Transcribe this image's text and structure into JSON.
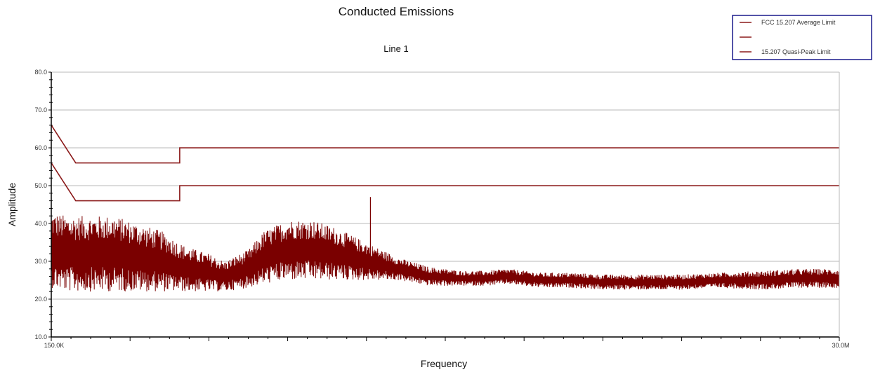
{
  "chart_data": {
    "type": "line",
    "title": "Conducted Emissions",
    "subtitle": "Line 1",
    "xlabel": "Frequency",
    "ylabel": "Amplitude",
    "ylim": [
      10,
      80
    ],
    "yticks": [
      "10.0",
      "20.0",
      "30.0",
      "40.0",
      "50.0",
      "60.0",
      "70.0",
      "80.0"
    ],
    "xlim_labels": [
      "150.0K",
      "30.0M"
    ],
    "grid": true,
    "legend_position": "top-right",
    "legend": [
      {
        "label": "FCC 15.207 Average Limit",
        "color": "#8b1a1a"
      },
      {
        "label": "",
        "color": "#8b1a1a"
      },
      {
        "label": "15.207 Quasi-Peak Limit",
        "color": "#8b1a1a"
      }
    ],
    "series": [
      {
        "name": "15.207 Quasi-Peak Limit",
        "color": "#8b1a1a",
        "x": [
          0.0,
          0.031,
          0.163,
          0.163,
          1.0
        ],
        "y": [
          66,
          56,
          56,
          60,
          60
        ]
      },
      {
        "name": "FCC 15.207 Average Limit",
        "color": "#8b1a1a",
        "x": [
          0.0,
          0.031,
          0.163,
          0.163,
          1.0
        ],
        "y": [
          56,
          46,
          46,
          50,
          50
        ]
      },
      {
        "name": "",
        "color": "#7a0000",
        "x": [
          0.0,
          0.02,
          0.05,
          0.08,
          0.11,
          0.14,
          0.17,
          0.2,
          0.22,
          0.25,
          0.27,
          0.3,
          0.33,
          0.36,
          0.4,
          0.44,
          0.48,
          0.52,
          0.55,
          0.58,
          0.62,
          0.66,
          0.7,
          0.75,
          0.8,
          0.85,
          0.9,
          0.95,
          1.0
        ],
        "y_center": [
          33,
          32,
          32,
          32,
          31,
          30,
          28,
          27,
          26,
          28,
          31,
          33,
          33,
          32,
          30,
          28,
          26,
          25.5,
          25.5,
          26,
          25,
          25,
          24.5,
          24.5,
          24.5,
          25,
          25,
          25.5,
          25.5
        ],
        "y_spread": [
          10,
          10,
          10,
          10,
          9,
          8,
          6,
          5,
          4,
          5,
          7,
          8,
          8,
          7,
          5,
          3,
          2.5,
          2,
          2,
          2,
          2,
          2,
          2,
          2,
          2,
          2,
          2.5,
          2.5,
          2.5
        ],
        "spike": {
          "x": 0.405,
          "y": 47
        }
      }
    ]
  }
}
